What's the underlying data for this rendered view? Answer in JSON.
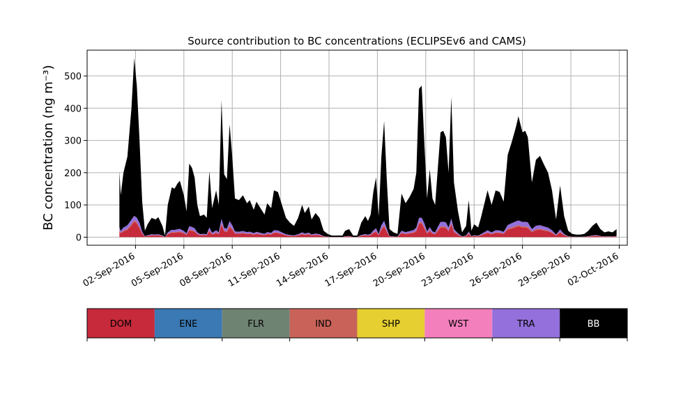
{
  "chart_data": {
    "type": "area",
    "title": "Source contribution to BC concentrations (ECLIPSEv6 and CAMS)",
    "ylabel": "BC concentration (ng m⁻³)",
    "xlabel": "",
    "xlim": [
      "2016-08-30",
      "2016-10-02T12:00"
    ],
    "ylim": [
      -25,
      580
    ],
    "x_ticks": [
      "02-Sep-2016",
      "05-Sep-2016",
      "08-Sep-2016",
      "11-Sep-2016",
      "14-Sep-2016",
      "17-Sep-2016",
      "20-Sep-2016",
      "23-Sep-2016",
      "26-Sep-2016",
      "29-Sep-2016",
      "02-Oct-2016"
    ],
    "x_tick_dates": [
      "2016-09-02",
      "2016-09-05",
      "2016-09-08",
      "2016-09-11",
      "2016-09-14",
      "2016-09-17",
      "2016-09-20",
      "2016-09-23",
      "2016-09-26",
      "2016-09-29",
      "2016-10-02"
    ],
    "y_ticks": [
      0,
      100,
      200,
      300,
      400,
      500
    ],
    "grid": true,
    "total": [
      [
        "2016-09-01T00:00",
        205
      ],
      [
        "2016-09-01T02:00",
        130
      ],
      [
        "2016-09-01T06:00",
        200
      ],
      [
        "2016-09-01T12:00",
        250
      ],
      [
        "2016-09-01T18:00",
        400
      ],
      [
        "2016-09-01T22:00",
        555
      ],
      [
        "2016-09-02T02:00",
        470
      ],
      [
        "2016-09-02T06:00",
        300
      ],
      [
        "2016-09-02T10:00",
        110
      ],
      [
        "2016-09-02T14:00",
        20
      ],
      [
        "2016-09-02T18:00",
        40
      ],
      [
        "2016-09-03T00:00",
        60
      ],
      [
        "2016-09-03T06:00",
        55
      ],
      [
        "2016-09-03T10:00",
        62
      ],
      [
        "2016-09-03T16:00",
        35
      ],
      [
        "2016-09-03T20:00",
        5
      ],
      [
        "2016-09-04T00:00",
        100
      ],
      [
        "2016-09-04T06:00",
        155
      ],
      [
        "2016-09-04T10:00",
        150
      ],
      [
        "2016-09-04T14:00",
        165
      ],
      [
        "2016-09-04T18:00",
        175
      ],
      [
        "2016-09-05T00:00",
        130
      ],
      [
        "2016-09-05T04:00",
        80
      ],
      [
        "2016-09-05T08:00",
        228
      ],
      [
        "2016-09-05T12:00",
        215
      ],
      [
        "2016-09-05T16:00",
        185
      ],
      [
        "2016-09-05T20:00",
        100
      ],
      [
        "2016-09-06T00:00",
        65
      ],
      [
        "2016-09-06T06:00",
        70
      ],
      [
        "2016-09-06T10:00",
        60
      ],
      [
        "2016-09-06T14:00",
        205
      ],
      [
        "2016-09-06T18:00",
        90
      ],
      [
        "2016-09-07T00:00",
        145
      ],
      [
        "2016-09-07T04:00",
        100
      ],
      [
        "2016-09-07T08:00",
        425
      ],
      [
        "2016-09-07T12:00",
        195
      ],
      [
        "2016-09-07T16:00",
        180
      ],
      [
        "2016-09-07T20:00",
        350
      ],
      [
        "2016-09-08T00:00",
        250
      ],
      [
        "2016-09-08T04:00",
        120
      ],
      [
        "2016-09-08T10:00",
        115
      ],
      [
        "2016-09-08T16:00",
        130
      ],
      [
        "2016-09-08T22:00",
        105
      ],
      [
        "2016-09-09T02:00",
        115
      ],
      [
        "2016-09-09T08:00",
        85
      ],
      [
        "2016-09-09T12:00",
        110
      ],
      [
        "2016-09-09T18:00",
        90
      ],
      [
        "2016-09-10T00:00",
        70
      ],
      [
        "2016-09-10T04:00",
        105
      ],
      [
        "2016-09-10T10:00",
        90
      ],
      [
        "2016-09-10T14:00",
        145
      ],
      [
        "2016-09-10T20:00",
        140
      ],
      [
        "2016-09-11T02:00",
        100
      ],
      [
        "2016-09-11T08:00",
        60
      ],
      [
        "2016-09-11T14:00",
        45
      ],
      [
        "2016-09-11T20:00",
        35
      ],
      [
        "2016-09-12T02:00",
        60
      ],
      [
        "2016-09-12T08:00",
        100
      ],
      [
        "2016-09-12T12:00",
        75
      ],
      [
        "2016-09-12T18:00",
        95
      ],
      [
        "2016-09-12T22:00",
        55
      ],
      [
        "2016-09-13T04:00",
        75
      ],
      [
        "2016-09-13T10:00",
        60
      ],
      [
        "2016-09-13T16:00",
        20
      ],
      [
        "2016-09-13T22:00",
        10
      ],
      [
        "2016-09-14T04:00",
        5
      ],
      [
        "2016-09-14T12:00",
        5
      ],
      [
        "2016-09-14T20:00",
        5
      ],
      [
        "2016-09-15T00:00",
        20
      ],
      [
        "2016-09-15T06:00",
        25
      ],
      [
        "2016-09-15T12:00",
        5
      ],
      [
        "2016-09-15T18:00",
        5
      ],
      [
        "2016-09-16T00:00",
        45
      ],
      [
        "2016-09-16T06:00",
        65
      ],
      [
        "2016-09-16T10:00",
        50
      ],
      [
        "2016-09-16T14:00",
        70
      ],
      [
        "2016-09-16T18:00",
        140
      ],
      [
        "2016-09-16T22:00",
        185
      ],
      [
        "2016-09-17T02:00",
        65
      ],
      [
        "2016-09-17T06:00",
        250
      ],
      [
        "2016-09-17T10:00",
        360
      ],
      [
        "2016-09-17T14:00",
        180
      ],
      [
        "2016-09-17T18:00",
        25
      ],
      [
        "2016-09-18T00:00",
        15
      ],
      [
        "2016-09-18T06:00",
        10
      ],
      [
        "2016-09-18T12:00",
        135
      ],
      [
        "2016-09-18T18:00",
        105
      ],
      [
        "2016-09-19T00:00",
        125
      ],
      [
        "2016-09-19T06:00",
        150
      ],
      [
        "2016-09-19T10:00",
        200
      ],
      [
        "2016-09-19T14:00",
        460
      ],
      [
        "2016-09-19T18:00",
        470
      ],
      [
        "2016-09-19T22:00",
        290
      ],
      [
        "2016-09-20T02:00",
        120
      ],
      [
        "2016-09-20T06:00",
        210
      ],
      [
        "2016-09-20T10:00",
        120
      ],
      [
        "2016-09-20T14:00",
        100
      ],
      [
        "2016-09-20T18:00",
        215
      ],
      [
        "2016-09-20T22:00",
        325
      ],
      [
        "2016-09-21T02:00",
        330
      ],
      [
        "2016-09-21T06:00",
        310
      ],
      [
        "2016-09-21T10:00",
        200
      ],
      [
        "2016-09-21T14:00",
        435
      ],
      [
        "2016-09-21T18:00",
        170
      ],
      [
        "2016-09-22T00:00",
        80
      ],
      [
        "2016-09-22T06:00",
        15
      ],
      [
        "2016-09-22T12:00",
        35
      ],
      [
        "2016-09-22T16:00",
        115
      ],
      [
        "2016-09-22T20:00",
        20
      ],
      [
        "2016-09-23T00:00",
        40
      ],
      [
        "2016-09-23T06:00",
        30
      ],
      [
        "2016-09-23T10:00",
        60
      ],
      [
        "2016-09-23T16:00",
        110
      ],
      [
        "2016-09-23T20:00",
        145
      ],
      [
        "2016-09-24T02:00",
        100
      ],
      [
        "2016-09-24T08:00",
        145
      ],
      [
        "2016-09-24T14:00",
        140
      ],
      [
        "2016-09-24T20:00",
        110
      ],
      [
        "2016-09-25T02:00",
        255
      ],
      [
        "2016-09-25T08:00",
        295
      ],
      [
        "2016-09-25T14:00",
        340
      ],
      [
        "2016-09-25T18:00",
        375
      ],
      [
        "2016-09-26T00:00",
        325
      ],
      [
        "2016-09-26T04:00",
        330
      ],
      [
        "2016-09-26T08:00",
        310
      ],
      [
        "2016-09-26T14:00",
        170
      ],
      [
        "2016-09-26T20:00",
        240
      ],
      [
        "2016-09-27T02:00",
        252
      ],
      [
        "2016-09-27T08:00",
        225
      ],
      [
        "2016-09-27T14:00",
        200
      ],
      [
        "2016-09-27T20:00",
        145
      ],
      [
        "2016-09-28T02:00",
        55
      ],
      [
        "2016-09-28T08:00",
        160
      ],
      [
        "2016-09-28T14:00",
        65
      ],
      [
        "2016-09-28T20:00",
        20
      ],
      [
        "2016-09-29T02:00",
        10
      ],
      [
        "2016-09-29T08:00",
        8
      ],
      [
        "2016-09-29T14:00",
        8
      ],
      [
        "2016-09-29T20:00",
        10
      ],
      [
        "2016-09-30T02:00",
        20
      ],
      [
        "2016-09-30T08:00",
        35
      ],
      [
        "2016-09-30T14:00",
        45
      ],
      [
        "2016-09-30T20:00",
        25
      ],
      [
        "2016-10-01T02:00",
        15
      ],
      [
        "2016-10-01T08:00",
        18
      ],
      [
        "2016-10-01T14:00",
        15
      ],
      [
        "2016-10-01T20:00",
        25
      ]
    ],
    "stack_layers": [
      "DOM",
      "ENE",
      "FLR",
      "IND",
      "SHP",
      "WST",
      "TRA",
      "BB"
    ],
    "legend": [
      {
        "name": "DOM",
        "color": "#c62a3b"
      },
      {
        "name": "ENE",
        "color": "#3a79b3"
      },
      {
        "name": "FLR",
        "color": "#6f8373"
      },
      {
        "name": "IND",
        "color": "#c9635a"
      },
      {
        "name": "SHP",
        "color": "#e6cf30"
      },
      {
        "name": "WST",
        "color": "#f47fbd"
      },
      {
        "name": "TRA",
        "color": "#9370db"
      },
      {
        "name": "BB",
        "color": "#000000",
        "text_color": "#ffffff"
      }
    ]
  }
}
